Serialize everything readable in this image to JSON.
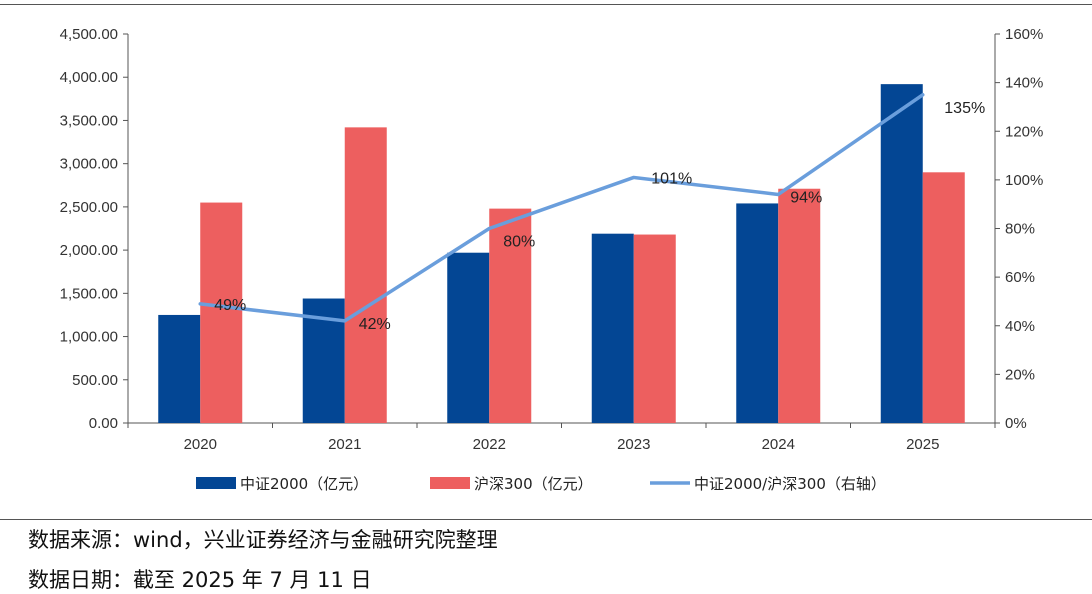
{
  "chart_data": {
    "type": "bar+line",
    "categories": [
      "2020",
      "2021",
      "2022",
      "2023",
      "2024",
      "2025"
    ],
    "series": [
      {
        "name": "中证2000（亿元）",
        "kind": "bar",
        "axis": "left",
        "color": "#034694",
        "values": [
          1250,
          1440,
          1970,
          2190,
          2540,
          3920
        ]
      },
      {
        "name": "沪深300（亿元）",
        "kind": "bar",
        "axis": "left",
        "color": "#ed5f5f",
        "values": [
          2550,
          3420,
          2480,
          2180,
          2710,
          2900
        ]
      },
      {
        "name": "中证2000/沪深300（右轴）",
        "kind": "line",
        "axis": "right",
        "color": "#6a9edc",
        "values": [
          49,
          42,
          80,
          101,
          94,
          135
        ],
        "labels": [
          "49%",
          "42%",
          "80%",
          "101%",
          "94%",
          "135%"
        ]
      }
    ],
    "y_left": {
      "min": 0,
      "max": 4500,
      "step": 500,
      "ticks": [
        "0.00",
        "500.00",
        "1,000.00",
        "1,500.00",
        "2,000.00",
        "2,500.00",
        "3,000.00",
        "3,500.00",
        "4,000.00",
        "4,500.00"
      ]
    },
    "y_right": {
      "min": 0,
      "max": 160,
      "step": 20,
      "ticks": [
        "0%",
        "20%",
        "40%",
        "60%",
        "80%",
        "100%",
        "120%",
        "140%",
        "160%"
      ]
    },
    "legend_position": "bottom",
    "grid": false
  },
  "footer": {
    "source": "数据来源：wind，兴业证券经济与金融研究院整理",
    "date": "数据日期：截至 2025 年 7 月 11 日"
  }
}
